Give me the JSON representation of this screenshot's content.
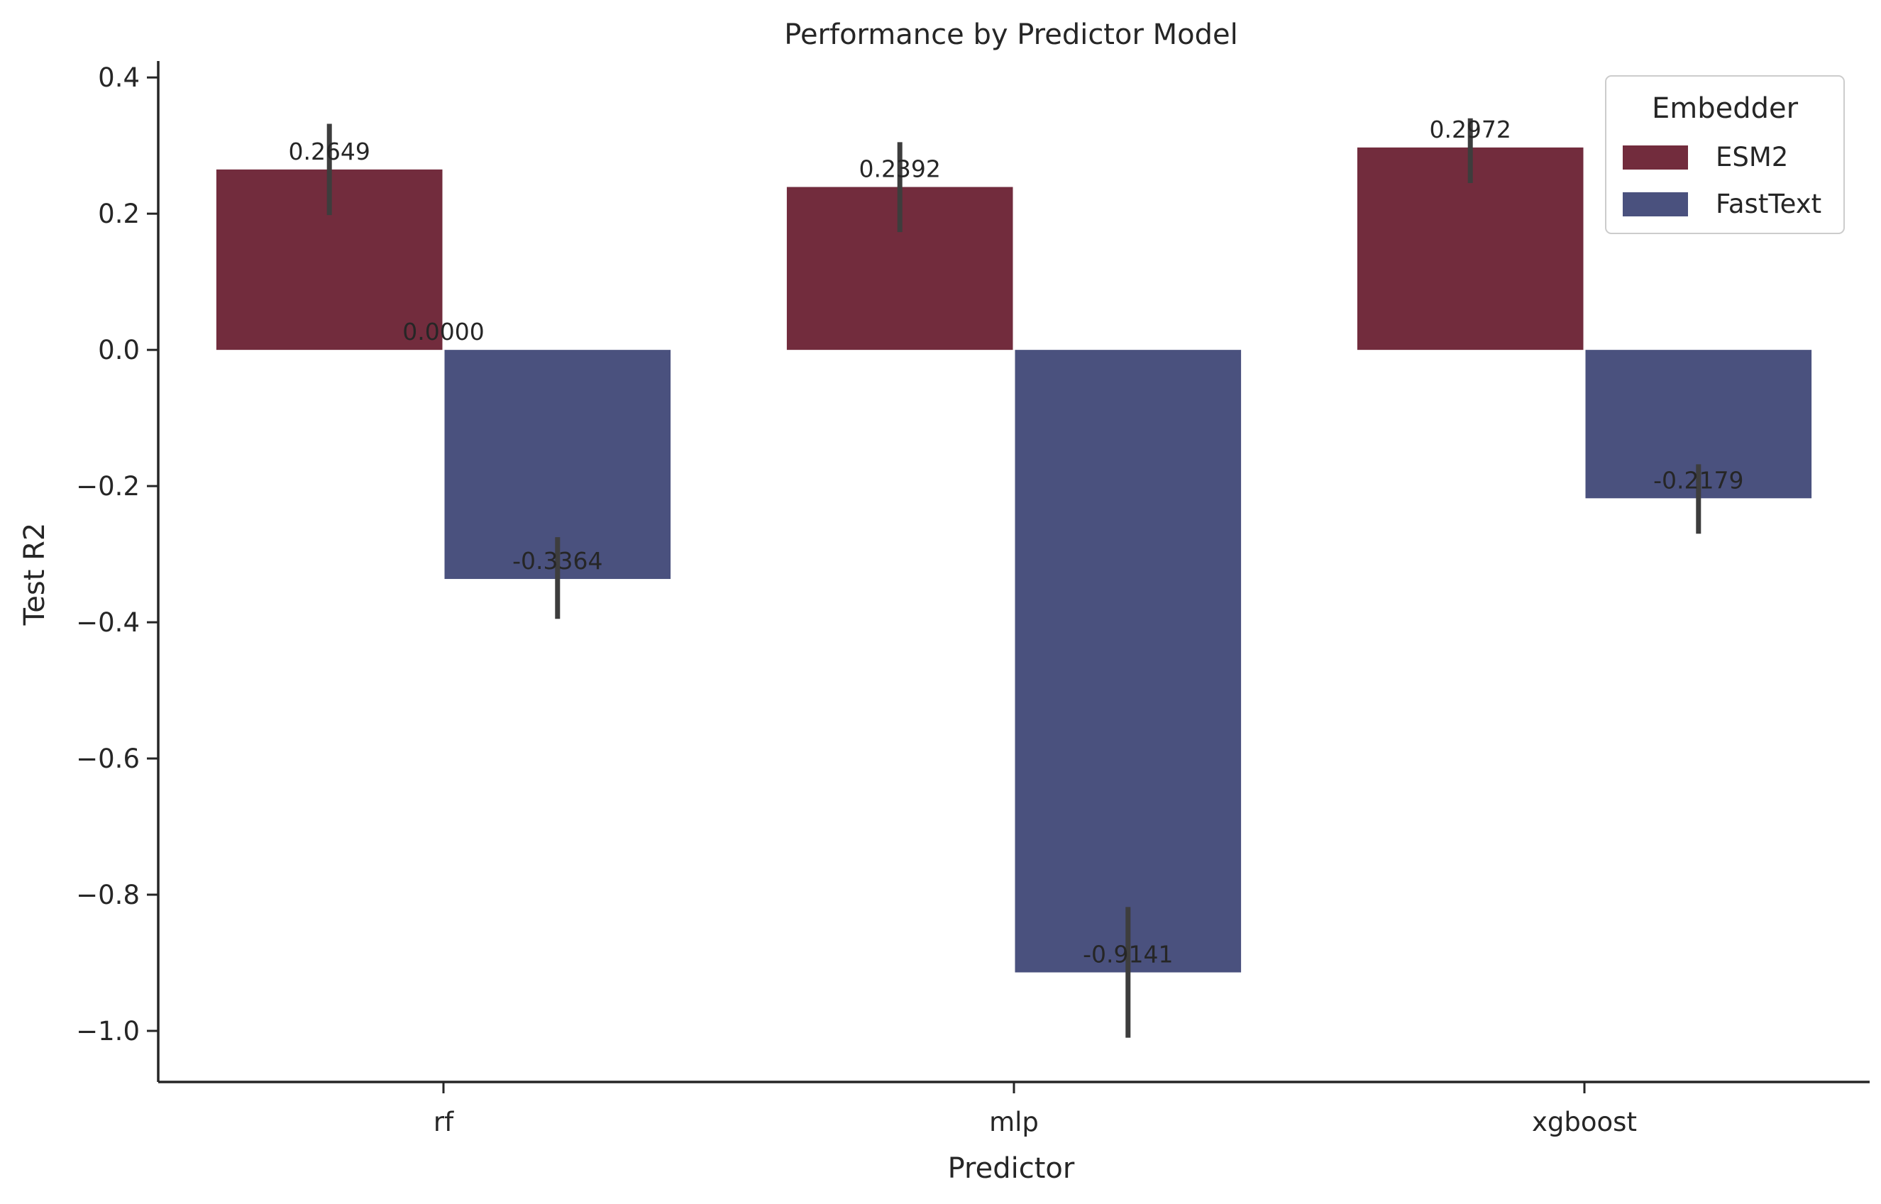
{
  "chart_data": {
    "type": "bar",
    "title": "Performance by Predictor Model",
    "xlabel": "Predictor",
    "ylabel": "Test R2",
    "categories": [
      "rf",
      "mlp",
      "xgboost"
    ],
    "ylim": [
      -1.075,
      0.42
    ],
    "yticks": [
      0.4,
      0.2,
      0.0,
      -0.2,
      -0.4,
      -0.6,
      -0.8,
      -1.0
    ],
    "ytick_labels": [
      "0.4",
      "0.2",
      "0.0",
      "−0.2",
      "−0.4",
      "−0.6",
      "−0.8",
      "−1.0"
    ],
    "grid": false,
    "legend": {
      "title": "Embedder",
      "placement": "top-right"
    },
    "series": [
      {
        "name": "ESM2",
        "color": "#722c3d",
        "values": [
          0.2649,
          0.2392,
          0.2972
        ],
        "labels": [
          "0.2649",
          "0.2392",
          "0.2972"
        ],
        "err_low": [
          0.198,
          0.173,
          0.245
        ],
        "err_high": [
          0.332,
          0.305,
          0.34
        ]
      },
      {
        "name": "FastText",
        "color": "#4a517e",
        "values": [
          -0.3364,
          -0.9141,
          -0.2179
        ],
        "labels": [
          "-0.3364",
          "-0.9141",
          "-0.2179"
        ],
        "err_low": [
          -0.395,
          -1.01,
          -0.27
        ],
        "err_high": [
          -0.275,
          -0.818,
          -0.168
        ]
      }
    ],
    "extra_annotations": [
      {
        "text": "0.0000",
        "category": "rf",
        "value": 0.0
      }
    ]
  }
}
